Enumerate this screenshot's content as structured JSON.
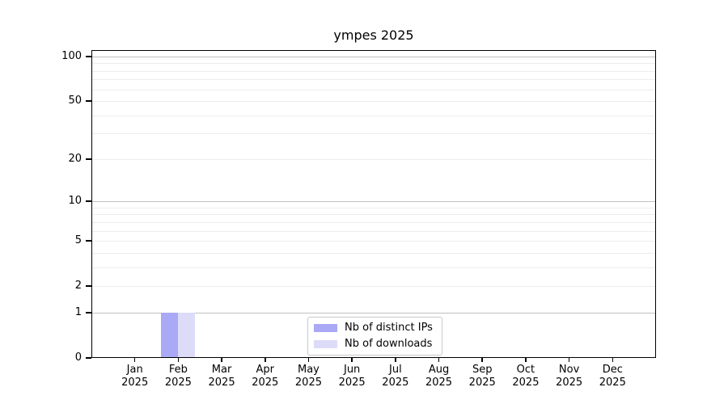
{
  "chart_data": {
    "type": "bar",
    "title": "ympes 2025",
    "x_tick_labels": [
      {
        "month": "Jan",
        "year": "2025"
      },
      {
        "month": "Feb",
        "year": "2025"
      },
      {
        "month": "Mar",
        "year": "2025"
      },
      {
        "month": "Apr",
        "year": "2025"
      },
      {
        "month": "May",
        "year": "2025"
      },
      {
        "month": "Jun",
        "year": "2025"
      },
      {
        "month": "Jul",
        "year": "2025"
      },
      {
        "month": "Aug",
        "year": "2025"
      },
      {
        "month": "Sep",
        "year": "2025"
      },
      {
        "month": "Oct",
        "year": "2025"
      },
      {
        "month": "Nov",
        "year": "2025"
      },
      {
        "month": "Dec",
        "year": "2025"
      }
    ],
    "series": [
      {
        "name": "Nb of distinct IPs",
        "color": "#a9a9f5",
        "values": [
          0,
          1,
          0,
          0,
          0,
          0,
          0,
          0,
          0,
          0,
          0,
          0
        ]
      },
      {
        "name": "Nb of downloads",
        "color": "#dcdcf8",
        "values": [
          0,
          1,
          0,
          0,
          0,
          0,
          0,
          0,
          0,
          0,
          0,
          0
        ]
      }
    ],
    "y_axis": {
      "scale": "log1p",
      "ticks": [
        0,
        1,
        2,
        5,
        10,
        20,
        50,
        100
      ],
      "major_gridlines": [
        1,
        10,
        100
      ],
      "minor_gridlines": [
        2,
        3,
        4,
        5,
        6,
        7,
        8,
        9,
        20,
        30,
        40,
        50,
        60,
        70,
        80,
        90
      ],
      "ylim": [
        0,
        110
      ]
    },
    "legend_position": "lower center",
    "grid": "horizontal",
    "colors": {
      "grid_minor": "#ececec",
      "grid_major": "#c0c0c0",
      "axis": "#000000",
      "text": "#000000",
      "background": "#ffffff"
    }
  }
}
